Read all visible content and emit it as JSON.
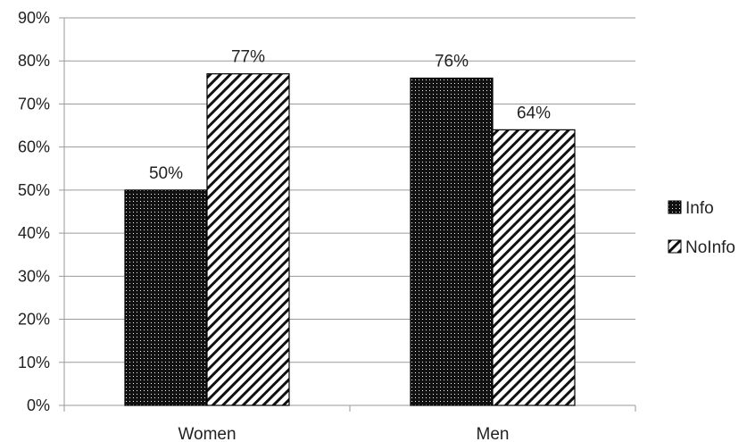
{
  "chart_data": {
    "type": "bar",
    "categories": [
      "Women",
      "Men"
    ],
    "series": [
      {
        "name": "Info",
        "values": [
          50,
          76
        ],
        "pattern": "dotted-dark"
      },
      {
        "name": "NoInfo",
        "values": [
          77,
          64
        ],
        "pattern": "diagonal-stripes"
      }
    ],
    "data_labels": [
      [
        "50%",
        "76%"
      ],
      [
        "77%",
        "64%"
      ]
    ],
    "y_ticks": [
      "0%",
      "10%",
      "20%",
      "30%",
      "40%",
      "50%",
      "60%",
      "70%",
      "80%",
      "90%"
    ],
    "ylim": [
      0,
      90
    ],
    "ytick_step": 10,
    "grid": true,
    "legend_position": "right",
    "title": "",
    "xlabel": "",
    "ylabel": ""
  },
  "colors": {
    "bar_dark": "#111111",
    "bar_dot": "#ffffff",
    "stripe": "#111111",
    "grid": "#9a9a9a",
    "text": "#222222"
  }
}
